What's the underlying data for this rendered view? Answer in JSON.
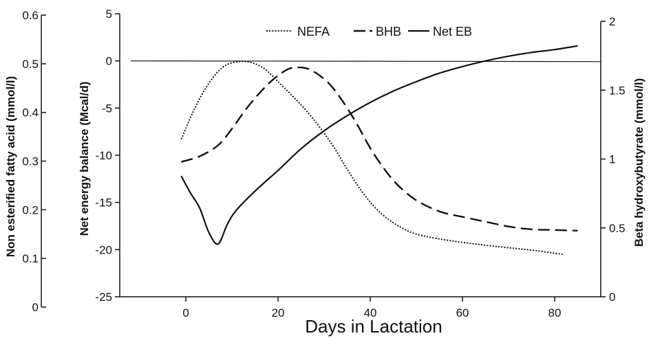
{
  "chart_data": {
    "type": "line",
    "xlabel": "Days in Lactation",
    "x_ticks": [
      "0",
      "20",
      "40",
      "60",
      "80"
    ],
    "xlim": [
      -13,
      90
    ],
    "axes": {
      "nefa": {
        "label": "Non esterified fatty acid (mmol/l)",
        "ylim": [
          0,
          0.6
        ],
        "ticks": [
          "0",
          "0.1",
          "0.2",
          "0.3",
          "0.4",
          "0.5",
          "0.6"
        ]
      },
      "eb": {
        "label": "Net energy balance (Mcal/d)",
        "ylim": [
          -25,
          5
        ],
        "ticks": [
          "-25",
          "-20",
          "-15",
          "-10",
          "-5",
          "0",
          "5"
        ]
      },
      "bhb": {
        "label": "Beta hydroxybutyrate (mmol/l)",
        "ylim": [
          0,
          2
        ],
        "ticks": [
          "0",
          "0.5",
          "1",
          "1.5",
          "2"
        ]
      }
    },
    "legend_position": "top",
    "series": [
      {
        "name": "NEFA",
        "axis": "nefa",
        "style": "dotted",
        "x": [
          -1,
          2,
          5,
          8,
          11,
          14,
          17,
          20,
          23,
          26,
          29,
          32,
          35,
          38,
          41,
          44,
          47,
          50,
          55,
          60,
          65,
          70,
          75,
          82
        ],
        "y": [
          0.345,
          0.41,
          0.46,
          0.493,
          0.504,
          0.503,
          0.49,
          0.463,
          0.435,
          0.405,
          0.37,
          0.33,
          0.283,
          0.24,
          0.205,
          0.18,
          0.162,
          0.15,
          0.14,
          0.133,
          0.127,
          0.122,
          0.117,
          0.108
        ]
      },
      {
        "name": "BHB",
        "axis": "bhb",
        "style": "dashed",
        "x": [
          -1,
          3,
          7,
          10,
          13,
          16,
          19,
          22,
          24,
          26,
          28,
          31,
          34,
          37,
          40,
          43,
          46,
          50,
          55,
          60,
          65,
          70,
          75,
          80,
          85
        ],
        "y": [
          0.98,
          1.02,
          1.1,
          1.22,
          1.36,
          1.48,
          1.58,
          1.65,
          1.665,
          1.66,
          1.63,
          1.55,
          1.42,
          1.26,
          1.08,
          0.93,
          0.81,
          0.7,
          0.62,
          0.58,
          0.545,
          0.51,
          0.49,
          0.485,
          0.48
        ]
      },
      {
        "name": "Net EB",
        "axis": "eb",
        "style": "solid",
        "x": [
          -1,
          1,
          3,
          5,
          7,
          9,
          11,
          15,
          20,
          25,
          30,
          35,
          40,
          45,
          50,
          55,
          60,
          65,
          70,
          75,
          80,
          85
        ],
        "y": [
          -12.2,
          -14.0,
          -15.6,
          -18.2,
          -19.4,
          -17.3,
          -15.8,
          -13.8,
          -11.6,
          -9.3,
          -7.4,
          -5.8,
          -4.4,
          -3.2,
          -2.2,
          -1.3,
          -0.6,
          0.0,
          0.5,
          0.9,
          1.2,
          1.6
        ]
      }
    ],
    "reference_line": {
      "axis": "eb",
      "value": 0
    }
  }
}
